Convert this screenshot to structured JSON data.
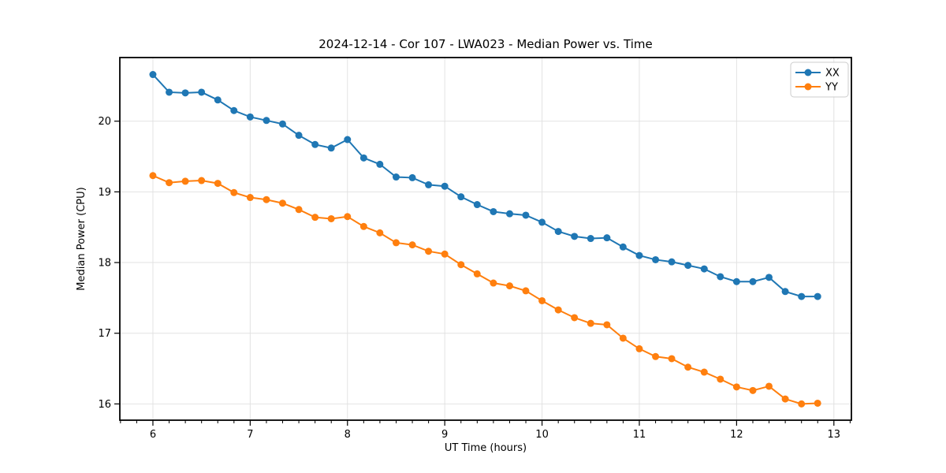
{
  "chart_data": {
    "type": "line",
    "title": "2024-12-14 - Cor 107 - LWA023 - Median Power vs. Time",
    "xlabel": "UT Time (hours)",
    "ylabel": "Median Power (CPU)",
    "xlim": [
      5.66,
      13.18
    ],
    "ylim": [
      15.77,
      20.9
    ],
    "x_ticks": [
      6,
      7,
      8,
      9,
      10,
      11,
      12,
      13
    ],
    "y_ticks": [
      16,
      17,
      18,
      19,
      20
    ],
    "x_minor_step": 0.16667,
    "grid": true,
    "legend_position": "upper right",
    "x": [
      6.0,
      6.167,
      6.333,
      6.5,
      6.667,
      6.833,
      7.0,
      7.167,
      7.333,
      7.5,
      7.667,
      7.833,
      8.0,
      8.167,
      8.333,
      8.5,
      8.667,
      8.833,
      9.0,
      9.167,
      9.333,
      9.5,
      9.667,
      9.833,
      10.0,
      10.167,
      10.333,
      10.5,
      10.667,
      10.833,
      11.0,
      11.167,
      11.333,
      11.5,
      11.667,
      11.833,
      12.0,
      12.167,
      12.333,
      12.5,
      12.667,
      12.833
    ],
    "series": [
      {
        "name": "XX",
        "color": "#1f77b4",
        "values": [
          20.66,
          20.41,
          20.4,
          20.41,
          20.3,
          20.15,
          20.06,
          20.01,
          19.96,
          19.8,
          19.67,
          19.62,
          19.74,
          19.48,
          19.39,
          19.21,
          19.2,
          19.1,
          19.08,
          18.93,
          18.82,
          18.72,
          18.69,
          18.67,
          18.57,
          18.44,
          18.37,
          18.34,
          18.35,
          18.22,
          18.1,
          18.04,
          18.01,
          17.96,
          17.91,
          17.8,
          17.73,
          17.73,
          17.79,
          17.59,
          17.52,
          17.52
        ]
      },
      {
        "name": "YY",
        "color": "#ff7f0e",
        "values": [
          19.23,
          19.13,
          19.15,
          19.16,
          19.12,
          18.99,
          18.92,
          18.89,
          18.84,
          18.75,
          18.64,
          18.62,
          18.65,
          18.51,
          18.42,
          18.28,
          18.25,
          18.16,
          18.12,
          17.97,
          17.84,
          17.71,
          17.67,
          17.6,
          17.46,
          17.33,
          17.22,
          17.14,
          17.12,
          16.93,
          16.78,
          16.67,
          16.64,
          16.52,
          16.45,
          16.35,
          16.24,
          16.19,
          16.25,
          16.07,
          16.0,
          16.01
        ]
      }
    ]
  }
}
